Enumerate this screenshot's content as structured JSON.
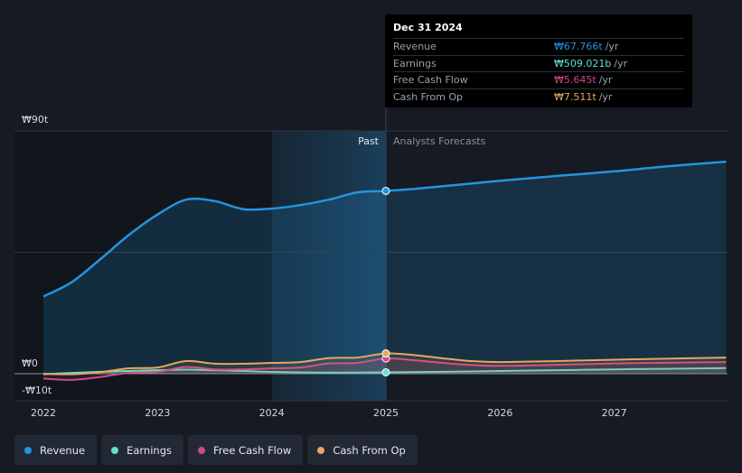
{
  "tooltip": {
    "date": "Dec 31 2024",
    "rows": [
      {
        "label": "Revenue",
        "value": "₩67.766t",
        "unit": "/yr",
        "color": "#2394df"
      },
      {
        "label": "Earnings",
        "value": "₩509.021b",
        "unit": "/yr",
        "color": "#61e3d0"
      },
      {
        "label": "Free Cash Flow",
        "value": "₩5.645t",
        "unit": "/yr",
        "color": "#d2468c"
      },
      {
        "label": "Cash From Op",
        "value": "₩7.511t",
        "unit": "/yr",
        "color": "#e6a95a"
      }
    ]
  },
  "legend": [
    {
      "label": "Revenue",
      "color": "#2394df"
    },
    {
      "label": "Earnings",
      "color": "#61e3d0"
    },
    {
      "label": "Free Cash Flow",
      "color": "#d2468c"
    },
    {
      "label": "Cash From Op",
      "color": "#e6a95a"
    }
  ],
  "chart_data": {
    "type": "line",
    "title": "",
    "ytick_labels": [
      "₩90t",
      "₩0",
      "-₩10t"
    ],
    "ylim": [
      -10,
      90
    ],
    "xlim": [
      2021.88,
      2027.98
    ],
    "xticks": [
      2022,
      2023,
      2024,
      2025,
      2026,
      2027
    ],
    "xtick_labels": [
      "2022",
      "2023",
      "2024",
      "2025",
      "2026",
      "2027"
    ],
    "past_label": "Past",
    "forecast_label": "Analysts Forecasts",
    "divider_x": 2025.0,
    "highlight_start_x": 2024.0,
    "series": [
      {
        "name": "Revenue",
        "color": "#2394df",
        "points": [
          [
            2022.0,
            28.6
          ],
          [
            2022.25,
            34.0
          ],
          [
            2022.5,
            42.5
          ],
          [
            2022.75,
            51.5
          ],
          [
            2023.0,
            59.0
          ],
          [
            2023.25,
            64.5
          ],
          [
            2023.5,
            64.0
          ],
          [
            2023.75,
            61.0
          ],
          [
            2024.0,
            61.2
          ],
          [
            2024.25,
            62.5
          ],
          [
            2024.5,
            64.5
          ],
          [
            2024.75,
            67.2
          ],
          [
            2025.0,
            67.766
          ],
          [
            2025.25,
            68.5
          ],
          [
            2025.5,
            69.5
          ],
          [
            2025.75,
            70.5
          ],
          [
            2026.0,
            71.5
          ],
          [
            2026.5,
            73.3
          ],
          [
            2027.0,
            75.0
          ],
          [
            2027.5,
            77.0
          ],
          [
            2027.98,
            78.6
          ]
        ]
      },
      {
        "name": "Earnings",
        "color": "#61e3d0",
        "points": [
          [
            2022.0,
            -0.2
          ],
          [
            2022.25,
            0.3
          ],
          [
            2022.5,
            0.7
          ],
          [
            2022.75,
            1.0
          ],
          [
            2023.0,
            1.3
          ],
          [
            2023.25,
            1.5
          ],
          [
            2023.5,
            1.3
          ],
          [
            2023.75,
            1.0
          ],
          [
            2024.0,
            0.7
          ],
          [
            2024.25,
            0.5
          ],
          [
            2024.5,
            0.4
          ],
          [
            2024.75,
            0.45
          ],
          [
            2025.0,
            0.509
          ],
          [
            2025.5,
            0.7
          ],
          [
            2026.0,
            1.0
          ],
          [
            2026.5,
            1.3
          ],
          [
            2027.0,
            1.6
          ],
          [
            2027.5,
            1.85
          ],
          [
            2027.98,
            2.1
          ]
        ]
      },
      {
        "name": "Free Cash Flow",
        "color": "#d2468c",
        "points": [
          [
            2022.0,
            -1.8
          ],
          [
            2022.25,
            -2.3
          ],
          [
            2022.5,
            -1.2
          ],
          [
            2022.75,
            0.3
          ],
          [
            2023.0,
            0.7
          ],
          [
            2023.25,
            2.5
          ],
          [
            2023.5,
            1.6
          ],
          [
            2023.75,
            1.6
          ],
          [
            2024.0,
            2.0
          ],
          [
            2024.25,
            2.3
          ],
          [
            2024.5,
            3.8
          ],
          [
            2024.75,
            4.0
          ],
          [
            2025.0,
            5.645
          ],
          [
            2025.25,
            5.0
          ],
          [
            2025.5,
            4.0
          ],
          [
            2025.75,
            3.2
          ],
          [
            2026.0,
            2.9
          ],
          [
            2026.5,
            3.3
          ],
          [
            2027.0,
            3.8
          ],
          [
            2027.5,
            4.1
          ],
          [
            2027.98,
            4.3
          ]
        ]
      },
      {
        "name": "Cash From Op",
        "color": "#e6a95a",
        "points": [
          [
            2022.0,
            0.0
          ],
          [
            2022.25,
            -0.2
          ],
          [
            2022.5,
            0.6
          ],
          [
            2022.75,
            2.0
          ],
          [
            2023.0,
            2.3
          ],
          [
            2023.25,
            4.7
          ],
          [
            2023.5,
            3.7
          ],
          [
            2023.75,
            3.7
          ],
          [
            2024.0,
            4.0
          ],
          [
            2024.25,
            4.3
          ],
          [
            2024.5,
            5.8
          ],
          [
            2024.75,
            6.0
          ],
          [
            2025.0,
            7.511
          ],
          [
            2025.25,
            6.9
          ],
          [
            2025.5,
            5.7
          ],
          [
            2025.75,
            4.7
          ],
          [
            2026.0,
            4.3
          ],
          [
            2026.5,
            4.7
          ],
          [
            2027.0,
            5.2
          ],
          [
            2027.5,
            5.6
          ],
          [
            2027.98,
            6.0
          ]
        ]
      }
    ]
  }
}
